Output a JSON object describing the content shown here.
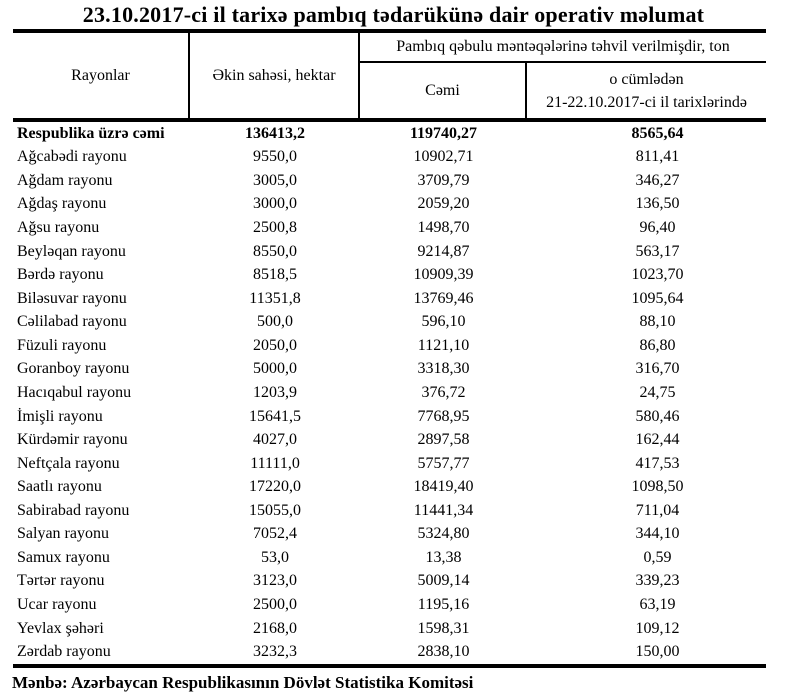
{
  "title": "23.10.2017-ci il tarixə pambıq tədarükünə dair operativ məlumat",
  "table": {
    "header": {
      "districts": "Rayonlar",
      "area": "Əkin sahəsi, hektar",
      "group": "Pambıq qəbulu məntəqələrinə təhvil verilmişdir, ton",
      "total": "Cəmi",
      "recent_line1": "o cümlədən",
      "recent_line2": "21-22.10.2017-ci il tarixlərində"
    },
    "rows": [
      {
        "name": "Respublika üzrə cəmi",
        "area": "136413,2",
        "total": "119740,27",
        "recent": "8565,64",
        "bold": true
      },
      {
        "name": "Ağcabədi rayonu",
        "area": "9550,0",
        "total": "10902,71",
        "recent": "811,41"
      },
      {
        "name": "Ağdam rayonu",
        "area": "3005,0",
        "total": "3709,79",
        "recent": "346,27"
      },
      {
        "name": "Ağdaş rayonu",
        "area": "3000,0",
        "total": "2059,20",
        "recent": "136,50"
      },
      {
        "name": "Ağsu rayonu",
        "area": "2500,8",
        "total": "1498,70",
        "recent": "96,40"
      },
      {
        "name": "Beyləqan rayonu",
        "area": "8550,0",
        "total": "9214,87",
        "recent": "563,17"
      },
      {
        "name": "Bərdə rayonu",
        "area": "8518,5",
        "total": "10909,39",
        "recent": "1023,70"
      },
      {
        "name": "Biləsuvar rayonu",
        "area": "11351,8",
        "total": "13769,46",
        "recent": "1095,64"
      },
      {
        "name": "Cəlilabad rayonu",
        "area": "500,0",
        "total": "596,10",
        "recent": "88,10"
      },
      {
        "name": "Füzuli rayonu",
        "area": "2050,0",
        "total": "1121,10",
        "recent": "86,80"
      },
      {
        "name": "Goranboy rayonu",
        "area": "5000,0",
        "total": "3318,30",
        "recent": "316,70"
      },
      {
        "name": "Hacıqabul rayonu",
        "area": "1203,9",
        "total": "376,72",
        "recent": "24,75"
      },
      {
        "name": "İmişli rayonu",
        "area": "15641,5",
        "total": "7768,95",
        "recent": "580,46"
      },
      {
        "name": "Kürdəmir rayonu",
        "area": "4027,0",
        "total": "2897,58",
        "recent": "162,44"
      },
      {
        "name": "Neftçala rayonu",
        "area": "11111,0",
        "total": "5757,77",
        "recent": "417,53"
      },
      {
        "name": "Saatlı rayonu",
        "area": "17220,0",
        "total": "18419,40",
        "recent": "1098,50"
      },
      {
        "name": "Sabirabad rayonu",
        "area": "15055,0",
        "total": "11441,34",
        "recent": "711,04"
      },
      {
        "name": "Salyan rayonu",
        "area": "7052,4",
        "total": "5324,80",
        "recent": "344,10"
      },
      {
        "name": "Samux rayonu",
        "area": "53,0",
        "total": "13,38",
        "recent": "0,59"
      },
      {
        "name": "Tərtər rayonu",
        "area": "3123,0",
        "total": "5009,14",
        "recent": "339,23"
      },
      {
        "name": "Ucar rayonu",
        "area": "2500,0",
        "total": "1195,16",
        "recent": "63,19"
      },
      {
        "name": "Yevlax şəhəri",
        "area": "2168,0",
        "total": "1598,31",
        "recent": "109,12"
      },
      {
        "name": "Zərdab rayonu",
        "area": "3232,3",
        "total": "2838,10",
        "recent": "150,00"
      }
    ]
  },
  "footer": "Mənbə: Azərbaycan Respublikasının Dövlət Statistika Komitəsi",
  "colors": {
    "text": "#000000",
    "background": "#ffffff",
    "border": "#000000"
  }
}
